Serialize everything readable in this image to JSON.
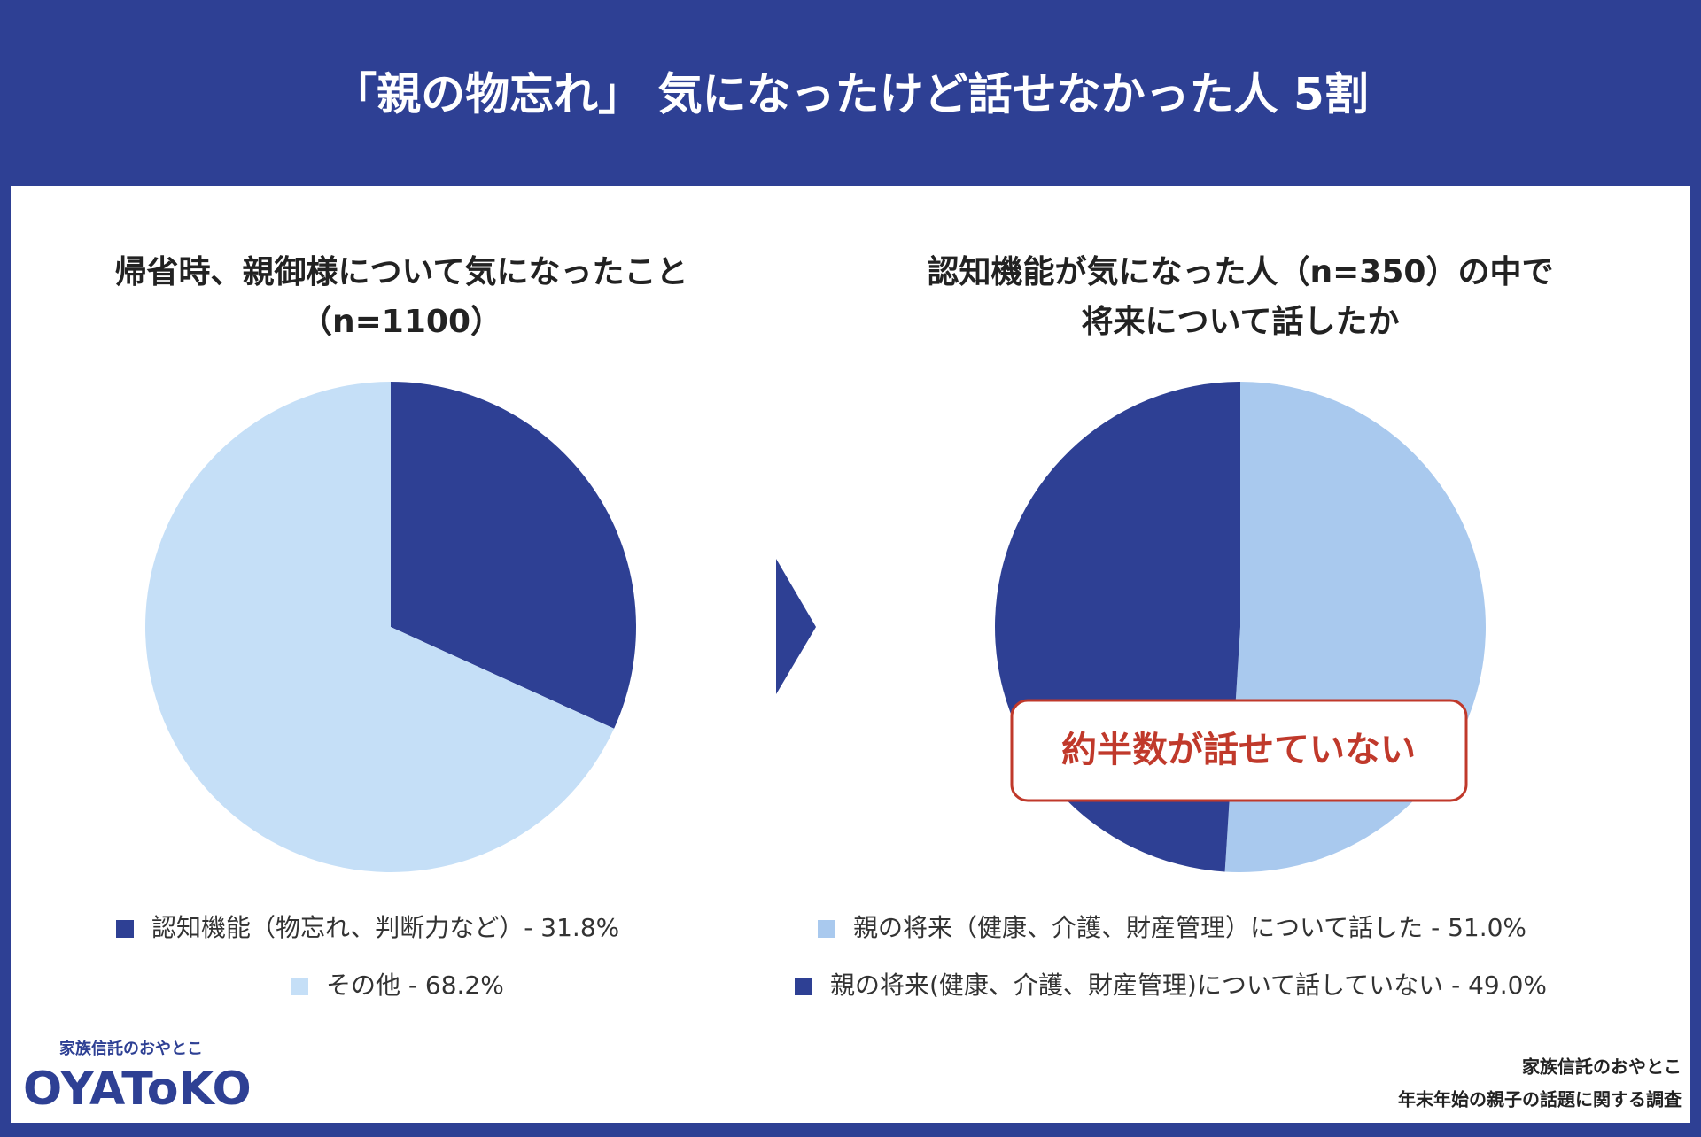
{
  "header": {
    "title": "「親の物忘れ」 気になったけど話せなかった人 5割"
  },
  "chart_data": [
    {
      "type": "pie",
      "title": [
        "帰省時、親御様について気になったこと",
        "（n=1100）"
      ],
      "categories": [
        "認知機能（物忘れ、判断力など）- 31.8%",
        "その他 - 68.2%"
      ],
      "values": [
        31.8,
        68.2
      ],
      "colors": [
        "#2e4094",
        "#c5dff7"
      ]
    },
    {
      "type": "pie",
      "title": [
        "認知機能が気になった人（n=350）の中で",
        "将来について話したか"
      ],
      "categories": [
        "親の将来（健康、介護、財産管理）について話した - 51.0%",
        "親の将来(健康、介護、財産管理)について話していない - 49.0%"
      ],
      "values": [
        51.0,
        49.0
      ],
      "colors": [
        "#a9c9ee",
        "#2e4094"
      ],
      "annotation": "約半数が話せていない"
    }
  ],
  "logo": {
    "tagline": "家族信託のおやとこ",
    "name": "OYAToKO"
  },
  "source": [
    "家族信託のおやとこ",
    "年末年始の親子の話題に関する調査"
  ]
}
